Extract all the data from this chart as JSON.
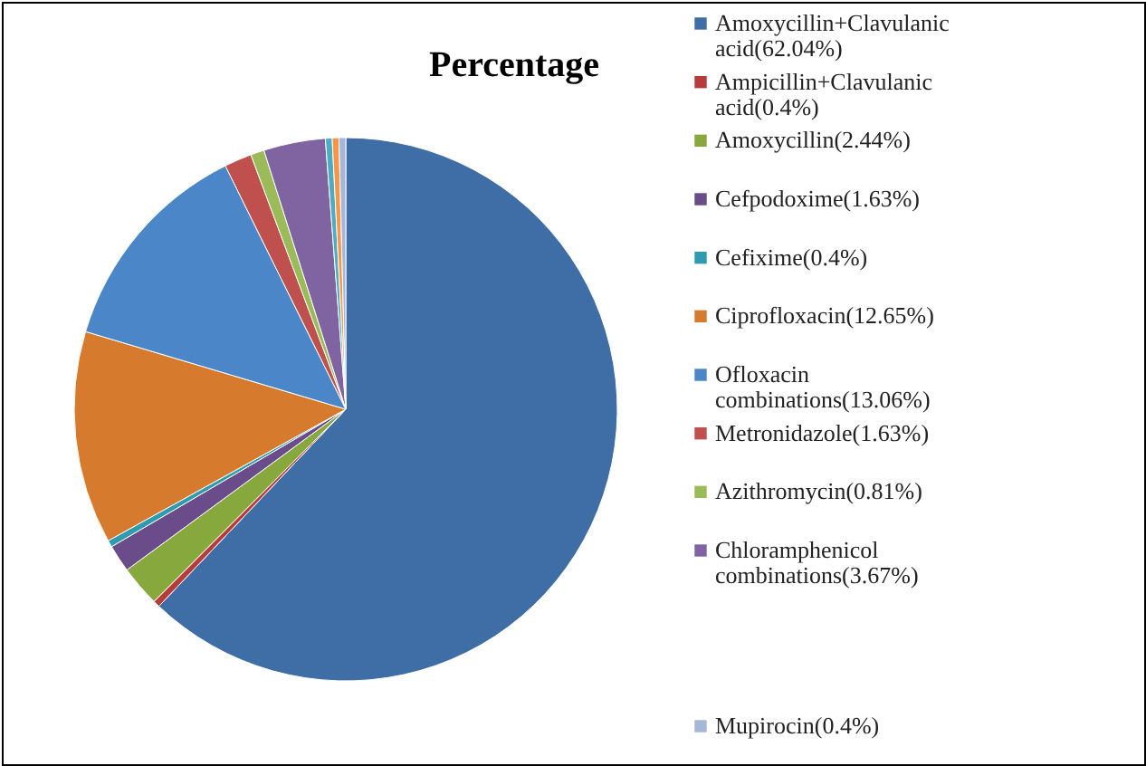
{
  "chart_data": {
    "type": "pie",
    "title": "Percentage",
    "categories": [
      "Amoxycillin+Clavulanic acid(62.04%)",
      "Ampicillin+Clavulanic acid(0.4%)",
      "Amoxycillin(2.44%)",
      "Cefpodoxime(1.63%)",
      "Cefixime(0.4%)",
      "Ciprofloxacin(12.65%)",
      "Ofloxacin combinations(13.06%)",
      "Metronidazole(1.63%)",
      "Azithromycin(0.81%)",
      "Chloramphenicol combinations(3.67%)",
      null,
      null,
      "Mupirocin(0.4%)"
    ],
    "values": [
      62.04,
      0.4,
      2.44,
      1.63,
      0.4,
      12.65,
      13.06,
      1.63,
      0.81,
      3.67,
      0.4,
      0.4,
      0.4
    ],
    "colors": [
      "#3f6ea6",
      "#b83b3b",
      "#86a83c",
      "#6b4c8a",
      "#2e9bb0",
      "#d67a2e",
      "#4a86c8",
      "#c0504d",
      "#9bbb59",
      "#8064a2",
      "#4bacc6",
      "#f79646",
      "#a5b6d8"
    ],
    "legend": "right"
  }
}
